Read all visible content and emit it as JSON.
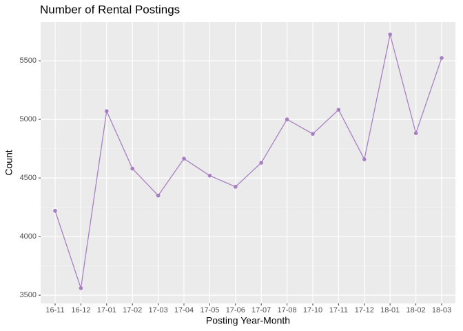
{
  "chart_data": {
    "type": "line",
    "title": "Number of Rental Postings",
    "x_label": "Posting Year-Month",
    "y_label": "Count",
    "categories": [
      "16-11",
      "16-12",
      "17-01",
      "17-02",
      "17-03",
      "17-04",
      "17-05",
      "17-06",
      "17-07",
      "17-08",
      "17-10",
      "17-11",
      "17-12",
      "18-01",
      "18-02",
      "18-03"
    ],
    "series": [
      {
        "name": "Count",
        "color": "#a87fc4",
        "values": [
          4220,
          3560,
          5070,
          4580,
          4350,
          4665,
          4520,
          4425,
          4630,
          5000,
          4876,
          5082,
          4659,
          5724,
          4882,
          5524
        ]
      }
    ],
    "ylim": [
      3430,
      5830
    ],
    "yticks": [
      3500,
      4000,
      4500,
      5000,
      5500
    ],
    "grid": true
  }
}
